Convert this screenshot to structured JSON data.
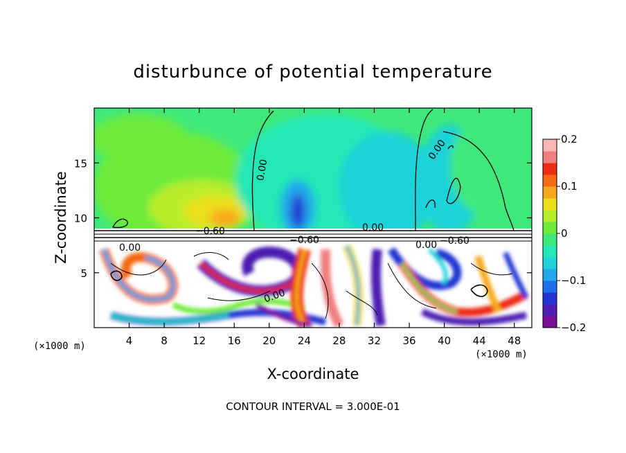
{
  "chart_data": {
    "type": "heatmap",
    "title": "disturbunce of potential temperature",
    "xlabel": "X-coordinate",
    "ylabel": "Z-coordinate",
    "x_unit_left": "(×1000 m)",
    "x_unit_right": "(×1000 m)",
    "xlim": [
      0,
      50
    ],
    "ylim": [
      0,
      20
    ],
    "x_ticks": [
      4,
      8,
      12,
      16,
      20,
      24,
      28,
      32,
      36,
      40,
      44,
      48
    ],
    "x_tick_labels": [
      "4",
      "8",
      "12",
      "16",
      "20",
      "24",
      "28",
      "32",
      "36",
      "40",
      "44",
      "48"
    ],
    "y_ticks": [
      5,
      10,
      15
    ],
    "y_tick_labels": [
      "5",
      "10",
      "15"
    ],
    "colorbar": {
      "range": [
        -0.2,
        0.2
      ],
      "ticks": [
        0.2,
        0.1,
        0,
        -0.1,
        -0.2
      ],
      "tick_labels": [
        "0.2",
        "0.1",
        "0",
        "−0.1",
        "−0.2"
      ],
      "colors": [
        "#7a0f96",
        "#4b1fb0",
        "#2434d2",
        "#1e6fe8",
        "#22a7ec",
        "#1fd3d9",
        "#20e8b6",
        "#3fe87a",
        "#6eeb3a",
        "#b9ec2b",
        "#ecdf1a",
        "#f7a81c",
        "#f46a17",
        "#ec2b15",
        "#f08080",
        "#fbb6b6"
      ]
    },
    "contour_labels": [
      "0.00",
      "0.00",
      "0.00",
      "0.00",
      "−0.60",
      "−0.60",
      "−0.60",
      "0.00",
      "0.00"
    ],
    "contour_interval_text": "CONTOUR INTERVAL = 3.000E-01",
    "grid": false,
    "legend": "colorbar-right"
  }
}
